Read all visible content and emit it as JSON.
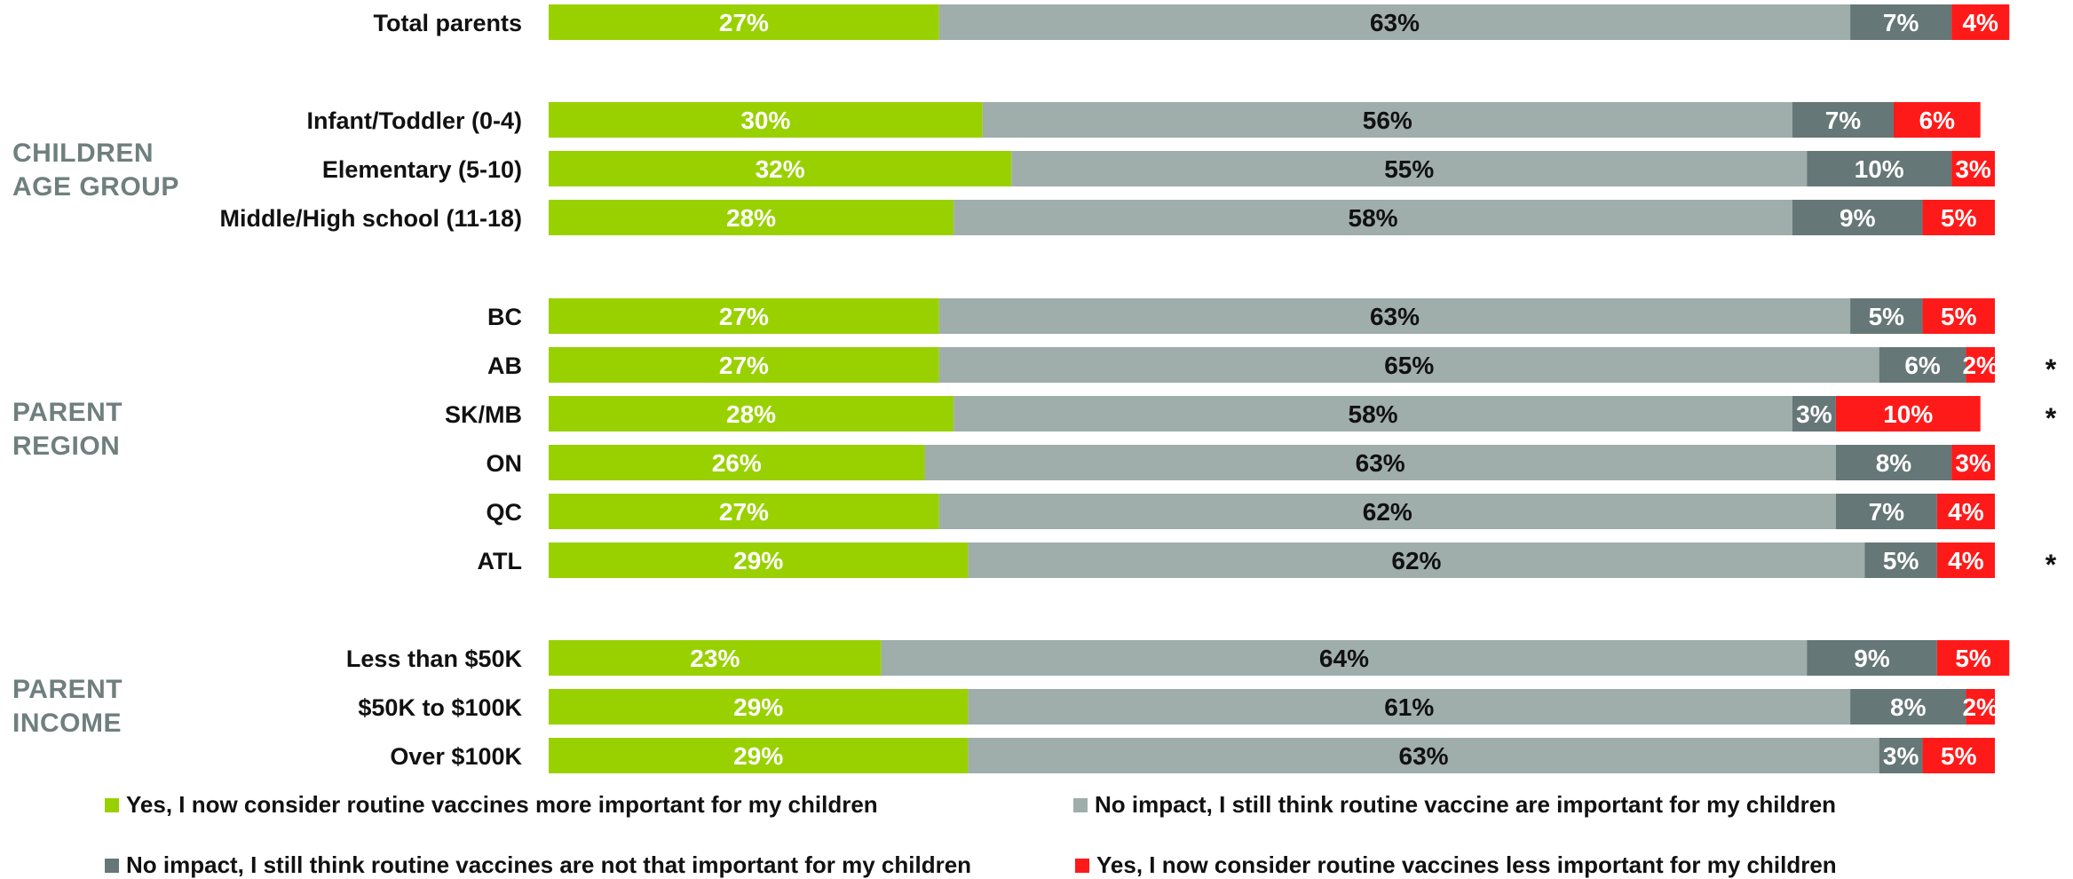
{
  "chart_data": {
    "type": "bar",
    "orientation": "horizontal",
    "stacked": true,
    "value_format": "percent",
    "categories": [
      "Total parents",
      "Infant/Toddler (0-4)",
      "Elementary (5-10)",
      "Middle/High school (11-18)",
      "BC",
      "AB",
      "SK/MB",
      "ON",
      "QC",
      "ATL",
      "Less than $50K",
      "$50K to $100K",
      "Over $100K"
    ],
    "groups": [
      {
        "label": "",
        "categories": [
          "Total parents"
        ]
      },
      {
        "label": "CHILDREN AGE GROUP",
        "categories": [
          "Infant/Toddler (0-4)",
          "Elementary (5-10)",
          "Middle/High school (11-18)"
        ]
      },
      {
        "label": "PARENT REGION",
        "categories": [
          "BC",
          "AB",
          "SK/MB",
          "ON",
          "QC",
          "ATL"
        ]
      },
      {
        "label": "PARENT INCOME",
        "categories": [
          "Less than $50K",
          "$50K to $100K",
          "Over $100K"
        ]
      }
    ],
    "series": [
      {
        "name": "Yes, I now consider routine vaccines more important for my children",
        "color": "#99d100",
        "label_color": "#ffffff",
        "values": [
          27,
          30,
          32,
          28,
          27,
          27,
          28,
          26,
          27,
          29,
          23,
          29,
          29
        ]
      },
      {
        "name": "No impact, I still think routine vaccine are important for my children",
        "color": "#9fadab",
        "label_color": "#111111",
        "values": [
          63,
          56,
          55,
          58,
          63,
          65,
          58,
          63,
          62,
          62,
          64,
          61,
          63
        ]
      },
      {
        "name": "No impact, I still think routine vaccines are not that important for my children",
        "color": "#657776",
        "label_color": "#ffffff",
        "values": [
          7,
          7,
          10,
          9,
          5,
          6,
          3,
          8,
          7,
          5,
          9,
          8,
          3
        ]
      },
      {
        "name": "Yes, I now consider routine vaccines less important for my children",
        "color": "#ff1a1a",
        "label_color": "#ffffff",
        "values": [
          4,
          6,
          3,
          5,
          5,
          2,
          10,
          3,
          4,
          4,
          5,
          2,
          5
        ]
      }
    ],
    "annotations": {
      "AB": "*",
      "SK/MB": "*",
      "ATL": "*"
    },
    "xlim": [
      0,
      100
    ],
    "grid": false,
    "legend_position": "bottom"
  }
}
